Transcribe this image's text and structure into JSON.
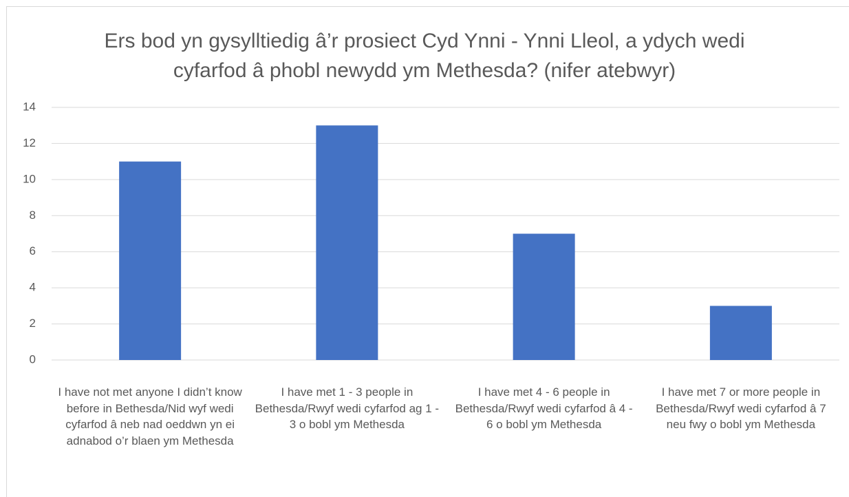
{
  "chart_data": {
    "type": "bar",
    "title": "Ers bod yn gysylltiedig â’r prosiect Cyd Ynni - Ynni Lleol, a ydych wedi cyfarfod â phobl newydd ym Methesda? (nifer atebwyr)",
    "categories": [
      "I have not met anyone I didn’t know before in Bethesda/Nid wyf wedi cyfarfod â neb nad oeddwn yn ei adnabod o’r blaen ym Methesda",
      "I have met 1 - 3 people in Bethesda/Rwyf wedi cyfarfod ag 1 - 3 o bobl ym Methesda",
      "I have met 4 - 6 people in Bethesda/Rwyf wedi cyfarfod â 4 - 6 o bobl ym Methesda",
      "I have met 7 or more people in Bethesda/Rwyf wedi cyfarfod â 7 neu fwy o bobl ym Methesda"
    ],
    "values": [
      11,
      13,
      7,
      3
    ],
    "color": "#4472c4",
    "ylim": [
      0,
      14
    ],
    "yticks": [
      0,
      2,
      4,
      6,
      8,
      10,
      12,
      14
    ],
    "grid": true
  }
}
